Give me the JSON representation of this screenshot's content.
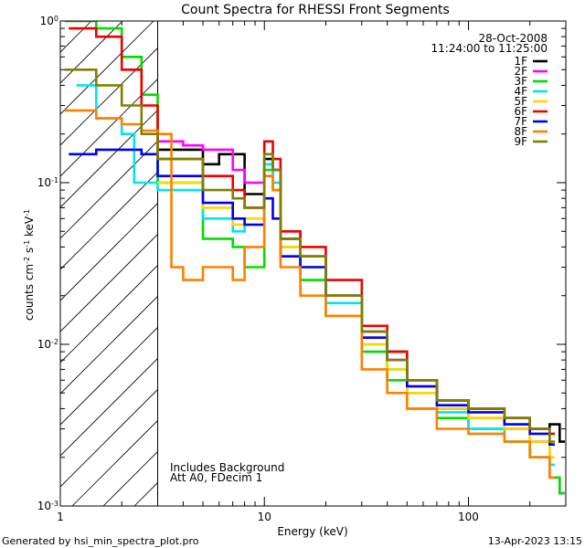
{
  "chart_data": {
    "type": "line",
    "title": "Count Spectra for RHESSI Front Segments",
    "xlabel": "Energy (keV)",
    "ylabel": {
      "base": "counts cm",
      "exp1": "-2",
      "mid": " s",
      "exp2": "-1",
      "mid2": " keV",
      "exp3": "-1"
    },
    "xscale": "log",
    "yscale": "log",
    "xlim": [
      1,
      300
    ],
    "ylim": [
      0.001,
      1
    ],
    "x_ticks": [
      {
        "value": 1,
        "label": "1"
      },
      {
        "value": 10,
        "label": "10"
      },
      {
        "value": 100,
        "label": "100"
      }
    ],
    "y_ticks": [
      {
        "value": 1,
        "base": "10",
        "exp": "0"
      },
      {
        "value": 0.1,
        "base": "10",
        "exp": "-1"
      },
      {
        "value": 0.01,
        "base": "10",
        "exp": "-2"
      },
      {
        "value": 0.001,
        "base": "10",
        "exp": "-3"
      }
    ],
    "date": "28-Oct-2008",
    "time_range": "11:24:00 to 11:25:00",
    "excluded_region_kev": [
      1,
      3
    ],
    "annotations": [
      "Includes Background",
      "Att A0, FDecim 1"
    ],
    "series": [
      {
        "name": "1F",
        "color": "#000000",
        "points": [
          [
            3,
            0.16
          ],
          [
            5,
            0.13
          ],
          [
            6,
            0.15
          ],
          [
            8,
            0.085
          ],
          [
            10,
            0.14
          ],
          [
            11,
            0.12
          ],
          [
            12,
            0.045
          ],
          [
            15,
            0.035
          ],
          [
            20,
            0.02
          ],
          [
            30,
            0.012
          ],
          [
            40,
            0.009
          ],
          [
            50,
            0.006
          ],
          [
            70,
            0.0045
          ],
          [
            100,
            0.004
          ],
          [
            150,
            0.0035
          ],
          [
            200,
            0.003
          ],
          [
            250,
            0.0032
          ],
          [
            280,
            0.0025
          ]
        ]
      },
      {
        "name": "2F",
        "color": "#ff00ff",
        "points": [
          [
            3,
            0.18
          ],
          [
            4,
            0.17
          ],
          [
            5,
            0.16
          ],
          [
            7,
            0.12
          ],
          [
            8,
            0.1
          ],
          [
            10,
            0.13
          ],
          [
            11,
            0.12
          ],
          [
            12,
            0.05
          ],
          [
            15,
            0.035
          ],
          [
            20,
            0.02
          ],
          [
            30,
            0.011
          ],
          [
            40,
            0.008
          ],
          [
            50,
            0.0055
          ],
          [
            70,
            0.004
          ],
          [
            100,
            0.0035
          ],
          [
            150,
            0.003
          ],
          [
            200,
            0.0025
          ],
          [
            250,
            0.0015
          ],
          [
            280,
            0.0012
          ]
        ]
      },
      {
        "name": "3F",
        "color": "#00dd00",
        "points": [
          [
            1.05,
            1.0
          ],
          [
            1.5,
            0.9
          ],
          [
            2,
            0.6
          ],
          [
            2.5,
            0.35
          ],
          [
            3,
            0.1
          ],
          [
            5,
            0.045
          ],
          [
            7,
            0.04
          ],
          [
            8,
            0.03
          ],
          [
            10,
            0.12
          ],
          [
            11,
            0.09
          ],
          [
            12,
            0.035
          ],
          [
            15,
            0.025
          ],
          [
            20,
            0.015
          ],
          [
            30,
            0.009
          ],
          [
            40,
            0.006
          ],
          [
            50,
            0.004
          ],
          [
            70,
            0.0035
          ],
          [
            100,
            0.003
          ],
          [
            150,
            0.0025
          ],
          [
            200,
            0.002
          ],
          [
            250,
            0.0015
          ],
          [
            280,
            0.0012
          ]
        ]
      },
      {
        "name": "4F",
        "color": "#00e5ee",
        "points": [
          [
            1.2,
            0.4
          ],
          [
            1.5,
            0.25
          ],
          [
            2,
            0.2
          ],
          [
            2.3,
            0.1
          ],
          [
            3,
            0.09
          ],
          [
            5,
            0.06
          ],
          [
            7,
            0.05
          ],
          [
            8,
            0.055
          ],
          [
            10,
            0.13
          ],
          [
            11,
            0.1
          ],
          [
            12,
            0.04
          ],
          [
            15,
            0.03
          ],
          [
            20,
            0.018
          ],
          [
            30,
            0.01
          ],
          [
            40,
            0.007
          ],
          [
            50,
            0.005
          ],
          [
            70,
            0.0038
          ],
          [
            100,
            0.003
          ],
          [
            150,
            0.0025
          ],
          [
            200,
            0.002
          ],
          [
            250,
            0.0018
          ]
        ]
      },
      {
        "name": "5F",
        "color": "#ffd700",
        "points": [
          [
            3,
            0.1
          ],
          [
            5,
            0.07
          ],
          [
            7,
            0.055
          ],
          [
            8,
            0.06
          ],
          [
            10,
            0.11
          ],
          [
            11,
            0.09
          ],
          [
            12,
            0.04
          ],
          [
            15,
            0.03
          ],
          [
            20,
            0.02
          ],
          [
            30,
            0.01
          ],
          [
            40,
            0.007
          ],
          [
            50,
            0.005
          ],
          [
            70,
            0.004
          ],
          [
            100,
            0.0035
          ],
          [
            150,
            0.003
          ],
          [
            200,
            0.0025
          ],
          [
            250,
            0.002
          ]
        ]
      },
      {
        "name": "6F",
        "color": "#ee0000",
        "points": [
          [
            1.1,
            0.9
          ],
          [
            1.5,
            0.8
          ],
          [
            2,
            0.5
          ],
          [
            2.5,
            0.3
          ],
          [
            3,
            0.14
          ],
          [
            5,
            0.11
          ],
          [
            7,
            0.09
          ],
          [
            8,
            0.07
          ],
          [
            10,
            0.18
          ],
          [
            11,
            0.14
          ],
          [
            12,
            0.05
          ],
          [
            15,
            0.04
          ],
          [
            20,
            0.025
          ],
          [
            30,
            0.013
          ],
          [
            40,
            0.009
          ],
          [
            50,
            0.006
          ],
          [
            70,
            0.0045
          ],
          [
            100,
            0.004
          ],
          [
            150,
            0.0035
          ],
          [
            200,
            0.003
          ],
          [
            250,
            0.0028
          ]
        ]
      },
      {
        "name": "7F",
        "color": "#0000ee",
        "points": [
          [
            1.1,
            0.15
          ],
          [
            1.5,
            0.16
          ],
          [
            2.5,
            0.15
          ],
          [
            3,
            0.11
          ],
          [
            5,
            0.075
          ],
          [
            7,
            0.06
          ],
          [
            8,
            0.055
          ],
          [
            10,
            0.08
          ],
          [
            11,
            0.06
          ],
          [
            12,
            0.035
          ],
          [
            15,
            0.03
          ],
          [
            20,
            0.02
          ],
          [
            30,
            0.011
          ],
          [
            40,
            0.008
          ],
          [
            50,
            0.0055
          ],
          [
            70,
            0.0042
          ],
          [
            100,
            0.0038
          ],
          [
            150,
            0.0032
          ],
          [
            200,
            0.0028
          ],
          [
            250,
            0.0024
          ]
        ]
      },
      {
        "name": "8F",
        "color": "#ff8000",
        "points": [
          [
            1.05,
            0.28
          ],
          [
            1.5,
            0.25
          ],
          [
            2,
            0.23
          ],
          [
            2.5,
            0.21
          ],
          [
            3,
            0.2
          ],
          [
            3.5,
            0.03
          ],
          [
            4,
            0.025
          ],
          [
            5,
            0.03
          ],
          [
            7,
            0.025
          ],
          [
            8,
            0.04
          ],
          [
            10,
            0.11
          ],
          [
            11,
            0.09
          ],
          [
            12,
            0.03
          ],
          [
            15,
            0.02
          ],
          [
            20,
            0.015
          ],
          [
            30,
            0.007
          ],
          [
            40,
            0.005
          ],
          [
            50,
            0.004
          ],
          [
            70,
            0.003
          ],
          [
            100,
            0.0028
          ],
          [
            150,
            0.0025
          ],
          [
            200,
            0.002
          ],
          [
            250,
            0.0015
          ]
        ]
      },
      {
        "name": "9F",
        "color": "#808000",
        "points": [
          [
            1.05,
            0.5
          ],
          [
            1.5,
            0.4
          ],
          [
            2,
            0.3
          ],
          [
            2.5,
            0.2
          ],
          [
            3,
            0.14
          ],
          [
            5,
            0.09
          ],
          [
            7,
            0.08
          ],
          [
            8,
            0.07
          ],
          [
            10,
            0.15
          ],
          [
            11,
            0.12
          ],
          [
            12,
            0.045
          ],
          [
            15,
            0.035
          ],
          [
            20,
            0.02
          ],
          [
            30,
            0.012
          ],
          [
            40,
            0.008
          ],
          [
            50,
            0.006
          ],
          [
            70,
            0.0045
          ],
          [
            100,
            0.004
          ],
          [
            150,
            0.0035
          ],
          [
            200,
            0.003
          ],
          [
            250,
            0.0025
          ]
        ]
      }
    ]
  },
  "footer": {
    "generated_by": "Generated by hsi_min_spectra_plot.pro",
    "timestamp": "13-Apr-2023 13:15"
  }
}
